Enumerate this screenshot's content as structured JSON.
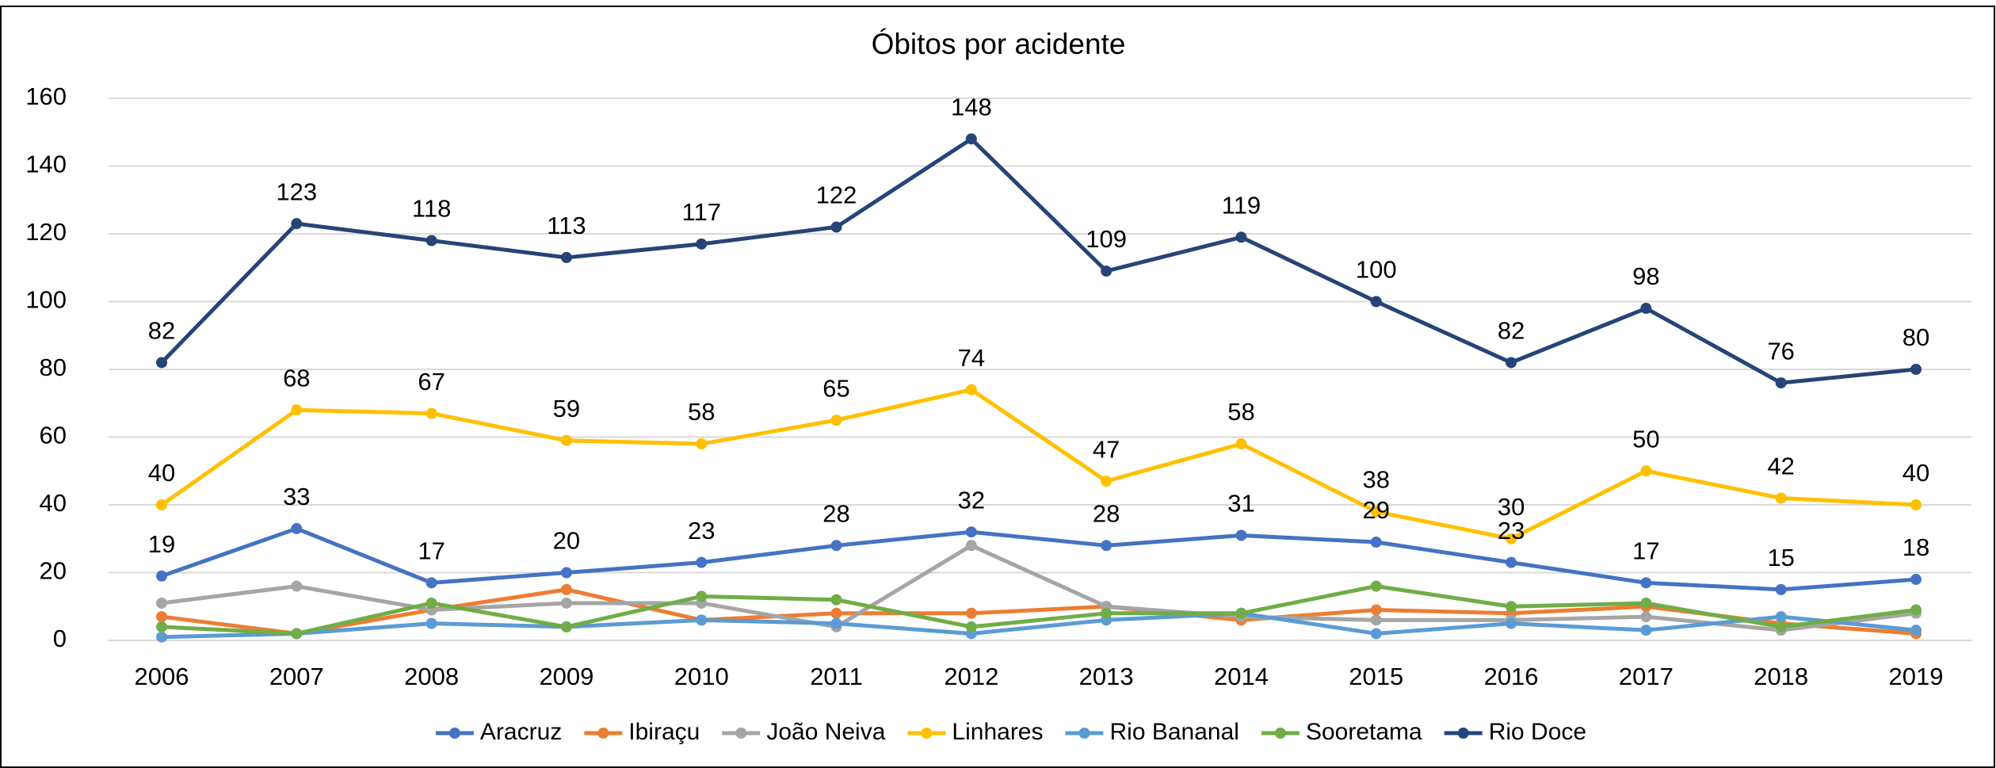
{
  "chart_data": {
    "type": "line",
    "title": "Óbitos por acidente",
    "categories": [
      "2006",
      "2007",
      "2008",
      "2009",
      "2010",
      "2011",
      "2012",
      "2013",
      "2014",
      "2015",
      "2016",
      "2017",
      "2018",
      "2019"
    ],
    "ylim": [
      0,
      160
    ],
    "yticks": [
      0,
      20,
      40,
      60,
      80,
      100,
      120,
      140,
      160
    ],
    "grid": true,
    "legend": "bottom",
    "series": [
      {
        "name": "Aracruz",
        "color": "#4472c4",
        "data_labels": true,
        "values": [
          19,
          33,
          17,
          20,
          23,
          28,
          32,
          28,
          31,
          29,
          23,
          17,
          15,
          18
        ]
      },
      {
        "name": "Ibiraçu",
        "color": "#ed7d31",
        "data_labels": false,
        "values": [
          7,
          2,
          9,
          15,
          6,
          8,
          8,
          10,
          6,
          9,
          8,
          10,
          5,
          2
        ]
      },
      {
        "name": "João Neiva",
        "color": "#a5a5a5",
        "data_labels": false,
        "values": [
          11,
          16,
          9,
          11,
          11,
          4,
          28,
          10,
          7,
          6,
          6,
          7,
          3,
          8
        ]
      },
      {
        "name": "Linhares",
        "color": "#ffc000",
        "data_labels": true,
        "values": [
          40,
          68,
          67,
          59,
          58,
          65,
          74,
          47,
          58,
          38,
          30,
          50,
          42,
          40
        ]
      },
      {
        "name": "Rio Bananal",
        "color": "#5b9bd5",
        "data_labels": false,
        "values": [
          1,
          2,
          5,
          4,
          6,
          5,
          2,
          6,
          8,
          2,
          5,
          3,
          7,
          3
        ]
      },
      {
        "name": "Sooretama",
        "color": "#70ad47",
        "data_labels": false,
        "values": [
          4,
          2,
          11,
          4,
          13,
          12,
          4,
          8,
          8,
          16,
          10,
          11,
          4,
          9
        ]
      },
      {
        "name": "Rio Doce",
        "color": "#264478",
        "data_labels": true,
        "values": [
          82,
          123,
          118,
          113,
          117,
          122,
          148,
          109,
          119,
          100,
          82,
          98,
          76,
          80
        ]
      }
    ]
  }
}
